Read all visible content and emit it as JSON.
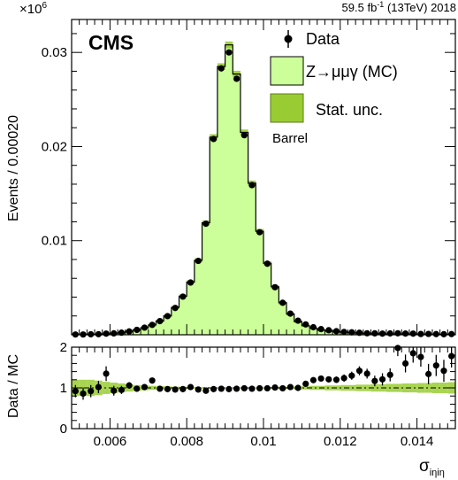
{
  "header": {
    "exponent_base": "×10",
    "exponent_power": "6",
    "lumi_prefix": "59.5 fb",
    "lumi_sup": "-1",
    "lumi_suffix": " (13TeV) 2018"
  },
  "colors": {
    "mc_fill": "#ccff99",
    "mc_line": "#000000",
    "stat_unc": "#99cc33",
    "data": "#000000",
    "ratio_line": "#000000"
  },
  "chart_data": [
    {
      "type": "histogram",
      "title": "",
      "ylabel": "Events / 0.00020",
      "xlim": [
        0.005,
        0.015
      ],
      "ylim": [
        0,
        0.0335
      ],
      "y_ticks": [
        {
          "value": 0.01,
          "label": "0.01"
        },
        {
          "value": 0.02,
          "label": "0.02"
        },
        {
          "value": 0.03,
          "label": "0.03"
        }
      ],
      "text_cms": "CMS",
      "text_region": "Barrel",
      "legend": {
        "position": "top-right",
        "data_label": "Data",
        "mc_label": "Z→μμγ (MC)",
        "unc_label": "Stat. unc."
      },
      "bin_edges": [
        0.005,
        0.0052,
        0.0054,
        0.0056,
        0.0058,
        0.006,
        0.0062,
        0.0064,
        0.0066,
        0.0068,
        0.007,
        0.0072,
        0.0074,
        0.0076,
        0.0078,
        0.008,
        0.0082,
        0.0084,
        0.0086,
        0.0088,
        0.009,
        0.0092,
        0.0094,
        0.0096,
        0.0098,
        0.01,
        0.0102,
        0.0104,
        0.0106,
        0.0108,
        0.011,
        0.0112,
        0.0114,
        0.0116,
        0.0118,
        0.012,
        0.0122,
        0.0124,
        0.0126,
        0.0128,
        0.013,
        0.0132,
        0.0134,
        0.0136,
        0.0138,
        0.014,
        0.0142,
        0.0144,
        0.0146,
        0.0148,
        0.015
      ],
      "series": [
        {
          "name": "Z→μμγ (MC)",
          "style": "filled-histogram",
          "values": [
            3e-05,
            3e-05,
            5e-05,
            6e-05,
            0.0001,
            0.00016,
            0.00022,
            0.00034,
            0.00052,
            0.00074,
            0.00104,
            0.00146,
            0.002,
            0.0029,
            0.0041,
            0.0056,
            0.0079,
            0.0119,
            0.021,
            0.0285,
            0.0308,
            0.0277,
            0.0215,
            0.0161,
            0.011,
            0.0076,
            0.0051,
            0.0034,
            0.0022,
            0.0014,
            0.00096,
            0.00068,
            0.0005,
            0.0004,
            0.00032,
            0.00026,
            0.00021,
            0.00017,
            0.00014,
            0.00012,
            0.0001,
            9e-05,
            8e-05,
            7e-05,
            6e-05,
            5e-05,
            5e-05,
            4e-05,
            4e-05,
            4e-05
          ]
        },
        {
          "name": "Data",
          "style": "points",
          "values": [
            3e-05,
            3e-05,
            5e-05,
            6e-05,
            0.00012,
            0.00015,
            0.00022,
            0.00035,
            0.00052,
            0.00076,
            0.00105,
            0.00145,
            0.00198,
            0.00285,
            0.00405,
            0.00555,
            0.00785,
            0.0118,
            0.0208,
            0.0283,
            0.03,
            0.0272,
            0.0212,
            0.0159,
            0.0109,
            0.00755,
            0.00505,
            0.0034,
            0.00225,
            0.0015,
            0.0011,
            0.0008,
            0.0006,
            0.00048,
            0.00038,
            0.0003,
            0.00026,
            0.00021,
            0.00016,
            0.00015,
            0.00012,
            0.00014,
            0.00016,
            0.00013,
            0.00012,
            8e-05,
            9e-05,
            7e-05,
            6e-05,
            7e-05
          ]
        }
      ]
    },
    {
      "type": "scatter",
      "ylabel": "Data / MC",
      "xlabel": "σ",
      "xlabel_sub": "iηiη",
      "xlim": [
        0.005,
        0.015
      ],
      "ylim": [
        0,
        2
      ],
      "x_ticks": [
        {
          "value": 0.006,
          "label": "0.006"
        },
        {
          "value": 0.008,
          "label": "0.008"
        },
        {
          "value": 0.01,
          "label": "0.01"
        },
        {
          "value": 0.012,
          "label": "0.012"
        },
        {
          "value": 0.014,
          "label": "0.014"
        }
      ],
      "y_ticks": [
        {
          "value": 0,
          "label": "0"
        },
        {
          "value": 1,
          "label": "1"
        },
        {
          "value": 2,
          "label": "2"
        }
      ],
      "reference_line": 1,
      "unc_band": [
        0.2,
        0.2,
        0.2,
        0.18,
        0.15,
        0.13,
        0.11,
        0.09,
        0.07,
        0.06,
        0.05,
        0.04,
        0.04,
        0.03,
        0.03,
        0.02,
        0.02,
        0.02,
        0.01,
        0.01,
        0.01,
        0.01,
        0.01,
        0.01,
        0.02,
        0.02,
        0.02,
        0.03,
        0.03,
        0.04,
        0.04,
        0.05,
        0.05,
        0.06,
        0.06,
        0.07,
        0.07,
        0.08,
        0.08,
        0.09,
        0.09,
        0.1,
        0.1,
        0.11,
        0.11,
        0.12,
        0.12,
        0.13,
        0.13,
        0.14
      ],
      "ratio": [
        0.92,
        0.86,
        0.92,
        1.02,
        1.35,
        0.93,
        0.95,
        1.06,
        0.98,
        1.02,
        1.18,
        0.98,
        0.97,
        0.96,
        0.97,
        1.02,
        0.96,
        0.93,
        0.97,
        0.98,
        0.97,
        0.98,
        0.99,
        0.98,
        0.99,
        0.99,
        1.01,
        0.99,
        1.02,
        1.0,
        1.1,
        1.19,
        1.23,
        1.21,
        1.2,
        1.24,
        1.3,
        1.42,
        1.35,
        1.17,
        1.21,
        1.32,
        1.98,
        1.6,
        1.85,
        1.76,
        1.34,
        1.55,
        1.42,
        1.78
      ],
      "ratio_err": [
        0.15,
        0.15,
        0.15,
        0.15,
        0.18,
        0.12,
        0.1,
        0.08,
        0.07,
        0.06,
        0.05,
        0.04,
        0.04,
        0.03,
        0.03,
        0.02,
        0.02,
        0.02,
        0.01,
        0.01,
        0.01,
        0.01,
        0.01,
        0.01,
        0.02,
        0.02,
        0.02,
        0.03,
        0.03,
        0.04,
        0.05,
        0.06,
        0.06,
        0.07,
        0.08,
        0.09,
        0.1,
        0.11,
        0.12,
        0.13,
        0.15,
        0.16,
        0.2,
        0.22,
        0.23,
        0.24,
        0.25,
        0.26,
        0.27,
        0.28
      ]
    }
  ]
}
